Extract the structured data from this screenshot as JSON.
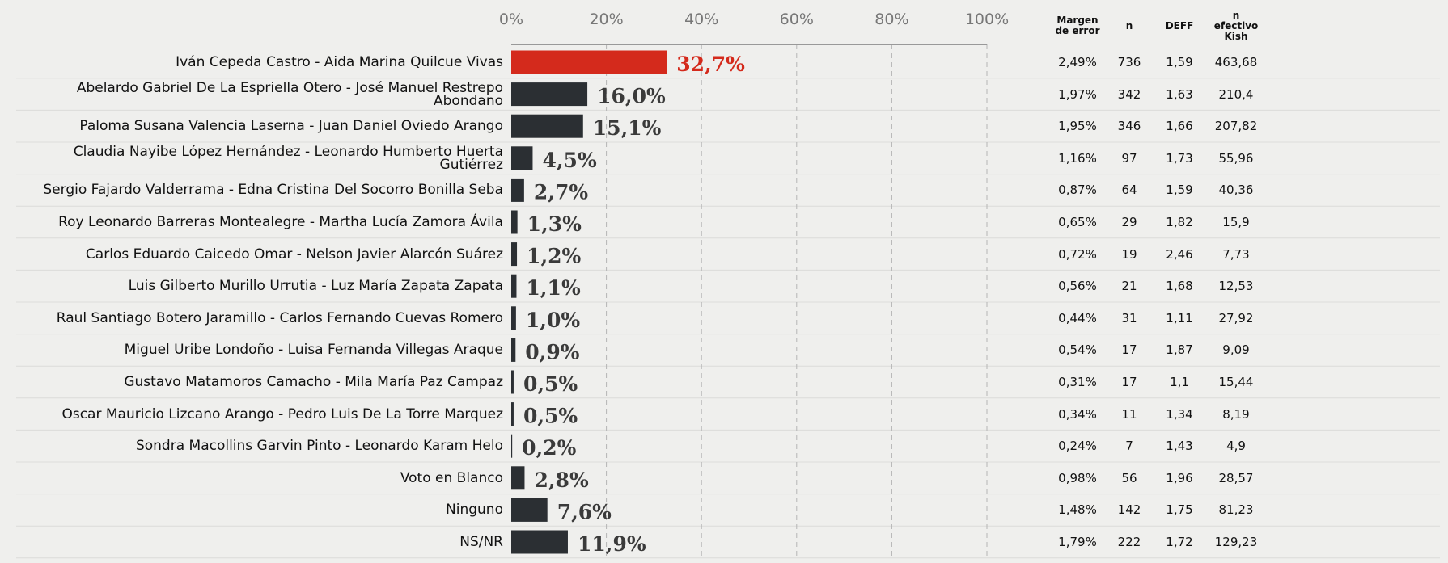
{
  "chart_data": {
    "type": "bar",
    "orientation": "horizontal",
    "categories": [
      "Iván Cepeda Castro - Aida Marina Quilcue Vivas",
      "Abelardo Gabriel De La Espriella Otero - José Manuel Restrepo Abondano",
      "Paloma Susana Valencia Laserna - Juan Daniel Oviedo Arango",
      "Claudia Nayibe López Hernández - Leonardo Humberto Huerta Gutiérrez",
      "Sergio Fajardo Valderrama - Edna Cristina Del Socorro Bonilla Seba",
      "Roy Leonardo Barreras Montealegre - Martha Lucía Zamora Ávila",
      "Carlos Eduardo Caicedo Omar - Nelson Javier Alarcón Suárez",
      "Luis Gilberto Murillo Urrutia - Luz María Zapata Zapata",
      "Raul Santiago Botero Jaramillo - Carlos Fernando Cuevas Romero",
      "Miguel Uribe Londoño - Luisa Fernanda Villegas Araque",
      "Gustavo Matamoros Camacho - Mila María Paz Campaz",
      "Oscar Mauricio Lizcano Arango - Pedro Luis De La Torre Marquez",
      "Sondra Macollins Garvin Pinto - Leonardo Karam Helo",
      "Voto en Blanco",
      "Ninguno",
      "NS/NR"
    ],
    "values": [
      32.7,
      16.0,
      15.1,
      4.5,
      2.7,
      1.3,
      1.2,
      1.1,
      1.0,
      0.9,
      0.5,
      0.5,
      0.2,
      2.8,
      7.6,
      11.9
    ],
    "value_labels": [
      "32,7%",
      "16,0%",
      "15,1%",
      "4,5%",
      "2,7%",
      "1,3%",
      "1,2%",
      "1,1%",
      "1,0%",
      "0,9%",
      "0,5%",
      "0,5%",
      "0,2%",
      "2,8%",
      "7,6%",
      "11,9%"
    ],
    "colors": [
      "#d42a1c",
      "#2b2f33",
      "#2b2f33",
      "#2b2f33",
      "#2b2f33",
      "#2b2f33",
      "#2b2f33",
      "#2b2f33",
      "#2b2f33",
      "#2b2f33",
      "#2b2f33",
      "#2b2f33",
      "#2b2f33",
      "#2b2f33",
      "#2b2f33",
      "#2b2f33"
    ],
    "xlim": [
      0,
      100
    ],
    "xticks": [
      {
        "value": 0,
        "label": "0%"
      },
      {
        "value": 20,
        "label": "20%"
      },
      {
        "value": 40,
        "label": "40%"
      },
      {
        "value": 60,
        "label": "60%"
      },
      {
        "value": 80,
        "label": "80%"
      },
      {
        "value": 100,
        "label": "100%"
      }
    ],
    "grid": true
  },
  "table": {
    "headers": [
      "Margen de error",
      "n",
      "DEFF",
      "n efectivo Kish"
    ],
    "rows": [
      [
        "2,49%",
        "736",
        "1,59",
        "463,68"
      ],
      [
        "1,97%",
        "342",
        "1,63",
        "210,4"
      ],
      [
        "1,95%",
        "346",
        "1,66",
        "207,82"
      ],
      [
        "1,16%",
        "97",
        "1,73",
        "55,96"
      ],
      [
        "0,87%",
        "64",
        "1,59",
        "40,36"
      ],
      [
        "0,65%",
        "29",
        "1,82",
        "15,9"
      ],
      [
        "0,72%",
        "19",
        "2,46",
        "7,73"
      ],
      [
        "0,56%",
        "21",
        "1,68",
        "12,53"
      ],
      [
        "0,44%",
        "31",
        "1,11",
        "27,92"
      ],
      [
        "0,54%",
        "17",
        "1,87",
        "9,09"
      ],
      [
        "0,31%",
        "17",
        "1,1",
        "15,44"
      ],
      [
        "0,34%",
        "11",
        "1,34",
        "8,19"
      ],
      [
        "0,24%",
        "7",
        "1,43",
        "4,9"
      ],
      [
        "0,98%",
        "56",
        "1,96",
        "28,57"
      ],
      [
        "1,48%",
        "142",
        "1,75",
        "81,23"
      ],
      [
        "1,79%",
        "222",
        "1,72",
        "129,23"
      ]
    ]
  }
}
